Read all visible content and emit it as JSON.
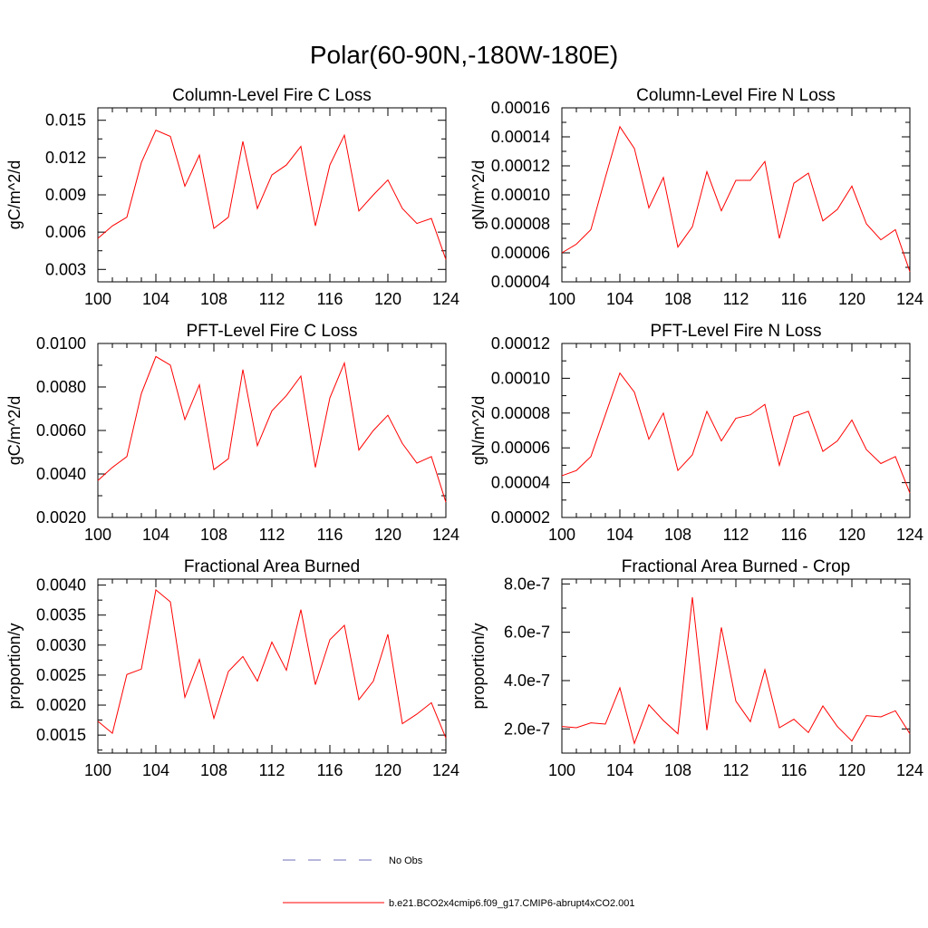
{
  "title": "Polar(60-90N,-180W-180E)",
  "chart_data": [
    {
      "type": "line",
      "title": "Column-Level Fire C Loss",
      "ylabel": "gC/m^2/d",
      "x": [
        100,
        101,
        102,
        103,
        104,
        105,
        106,
        107,
        108,
        109,
        110,
        111,
        112,
        113,
        114,
        115,
        116,
        117,
        118,
        119,
        120,
        121,
        122,
        123,
        124
      ],
      "series": [
        {
          "name": "b.e21.BCO2x4cmip6.f09_g17.CMIP6-abrupt4xCO2.001",
          "values": [
            0.0055,
            0.0065,
            0.0072,
            0.0116,
            0.0142,
            0.0137,
            0.0097,
            0.0122,
            0.0063,
            0.0072,
            0.0133,
            0.0079,
            0.0106,
            0.0114,
            0.0129,
            0.0065,
            0.0114,
            0.0138,
            0.0077,
            0.009,
            0.0102,
            0.0079,
            0.0067,
            0.0071,
            0.0038
          ]
        }
      ],
      "xlim": [
        100,
        124
      ],
      "ylim": [
        0.002,
        0.016
      ],
      "xticks": [
        "100",
        "104",
        "108",
        "112",
        "116",
        "120",
        "124"
      ],
      "yticks": [
        0.003,
        0.006,
        0.009,
        0.012,
        0.015
      ],
      "yticklabels": [
        "0.003",
        "0.006",
        "0.009",
        "0.012",
        "0.015"
      ]
    },
    {
      "type": "line",
      "title": "Column-Level Fire N Loss",
      "ylabel": "gN/m^2/d",
      "x": [
        100,
        101,
        102,
        103,
        104,
        105,
        106,
        107,
        108,
        109,
        110,
        111,
        112,
        113,
        114,
        115,
        116,
        117,
        118,
        119,
        120,
        121,
        122,
        123,
        124
      ],
      "series": [
        {
          "name": "b.e21.BCO2x4cmip6.f09_g17.CMIP6-abrupt4xCO2.001",
          "values": [
            6e-05,
            6.6e-05,
            7.6e-05,
            0.000112,
            0.000147,
            0.000132,
            9.1e-05,
            0.000112,
            6.4e-05,
            7.8e-05,
            0.000116,
            8.9e-05,
            0.00011,
            0.00011,
            0.000123,
            7e-05,
            0.000108,
            0.000115,
            8.2e-05,
            9e-05,
            0.000106,
            8e-05,
            6.9e-05,
            7.6e-05,
            4.7e-05
          ]
        }
      ],
      "xlim": [
        100,
        124
      ],
      "ylim": [
        4e-05,
        0.00016
      ],
      "xticks": [
        "100",
        "104",
        "108",
        "112",
        "116",
        "120",
        "124"
      ],
      "yticks": [
        4e-05,
        6e-05,
        8e-05,
        0.0001,
        0.00012,
        0.00014,
        0.00016
      ],
      "yticklabels": [
        "0.00004",
        "0.00006",
        "0.00008",
        "0.00010",
        "0.00012",
        "0.00014",
        "0.00016"
      ]
    },
    {
      "type": "line",
      "title": "PFT-Level Fire C Loss",
      "ylabel": "gC/m^2/d",
      "x": [
        100,
        101,
        102,
        103,
        104,
        105,
        106,
        107,
        108,
        109,
        110,
        111,
        112,
        113,
        114,
        115,
        116,
        117,
        118,
        119,
        120,
        121,
        122,
        123,
        124
      ],
      "series": [
        {
          "name": "b.e21.BCO2x4cmip6.f09_g17.CMIP6-abrupt4xCO2.001",
          "values": [
            0.0037,
            0.0043,
            0.0048,
            0.0077,
            0.0094,
            0.009,
            0.0065,
            0.0081,
            0.0042,
            0.0047,
            0.0088,
            0.0053,
            0.0069,
            0.0076,
            0.0085,
            0.0043,
            0.0075,
            0.0091,
            0.0051,
            0.006,
            0.0067,
            0.0054,
            0.0045,
            0.0048,
            0.0027
          ]
        }
      ],
      "xlim": [
        100,
        124
      ],
      "ylim": [
        0.002,
        0.01
      ],
      "xticks": [
        "100",
        "104",
        "108",
        "112",
        "116",
        "120",
        "124"
      ],
      "yticks": [
        0.002,
        0.004,
        0.006,
        0.008,
        0.01
      ],
      "yticklabels": [
        "0.0020",
        "0.0040",
        "0.0060",
        "0.0080",
        "0.0100"
      ]
    },
    {
      "type": "line",
      "title": "PFT-Level Fire N Loss",
      "ylabel": "gN/m^2/d",
      "x": [
        100,
        101,
        102,
        103,
        104,
        105,
        106,
        107,
        108,
        109,
        110,
        111,
        112,
        113,
        114,
        115,
        116,
        117,
        118,
        119,
        120,
        121,
        122,
        123,
        124
      ],
      "series": [
        {
          "name": "b.e21.BCO2x4cmip6.f09_g17.CMIP6-abrupt4xCO2.001",
          "values": [
            4.4e-05,
            4.7e-05,
            5.5e-05,
            7.9e-05,
            0.000103,
            9.2e-05,
            6.5e-05,
            8e-05,
            4.7e-05,
            5.6e-05,
            8.1e-05,
            6.4e-05,
            7.7e-05,
            7.9e-05,
            8.5e-05,
            5e-05,
            7.8e-05,
            8.1e-05,
            5.8e-05,
            6.4e-05,
            7.6e-05,
            5.9e-05,
            5.1e-05,
            5.5e-05,
            3.4e-05
          ]
        }
      ],
      "xlim": [
        100,
        124
      ],
      "ylim": [
        2e-05,
        0.00012
      ],
      "xticks": [
        "100",
        "104",
        "108",
        "112",
        "116",
        "120",
        "124"
      ],
      "yticks": [
        2e-05,
        4e-05,
        6e-05,
        8e-05,
        0.0001,
        0.00012
      ],
      "yticklabels": [
        "0.00002",
        "0.00004",
        "0.00006",
        "0.00008",
        "0.00010",
        "0.00012"
      ]
    },
    {
      "type": "line",
      "title": "Fractional Area Burned",
      "ylabel": "proportion/y",
      "x": [
        100,
        101,
        102,
        103,
        104,
        105,
        106,
        107,
        108,
        109,
        110,
        111,
        112,
        113,
        114,
        115,
        116,
        117,
        118,
        119,
        120,
        121,
        122,
        123,
        124
      ],
      "series": [
        {
          "name": "b.e21.BCO2x4cmip6.f09_g17.CMIP6-abrupt4xCO2.001",
          "values": [
            0.00173,
            0.00153,
            0.00251,
            0.0026,
            0.00392,
            0.00372,
            0.00213,
            0.00276,
            0.00178,
            0.00256,
            0.00281,
            0.0024,
            0.00305,
            0.00258,
            0.00359,
            0.00234,
            0.00309,
            0.00333,
            0.00209,
            0.0024,
            0.00318,
            0.00169,
            0.00185,
            0.00204,
            0.00145
          ]
        }
      ],
      "xlim": [
        100,
        124
      ],
      "ylim": [
        0.0012,
        0.0041
      ],
      "xticks": [
        "100",
        "104",
        "108",
        "112",
        "116",
        "120",
        "124"
      ],
      "yticks": [
        0.0015,
        0.002,
        0.0025,
        0.003,
        0.0035,
        0.004
      ],
      "yticklabels": [
        "0.0015",
        "0.0020",
        "0.0025",
        "0.0030",
        "0.0035",
        "0.0040"
      ]
    },
    {
      "type": "line",
      "title": "Fractional Area Burned - Crop",
      "ylabel": "proportion/y",
      "x": [
        100,
        101,
        102,
        103,
        104,
        105,
        106,
        107,
        108,
        109,
        110,
        111,
        112,
        113,
        114,
        115,
        116,
        117,
        118,
        119,
        120,
        121,
        122,
        123,
        124
      ],
      "series": [
        {
          "name": "b.e21.BCO2x4cmip6.f09_g17.CMIP6-abrupt4xCO2.001",
          "values": [
            2.1e-07,
            2.05e-07,
            2.25e-07,
            2.2e-07,
            3.7e-07,
            1.4e-07,
            3e-07,
            2.35e-07,
            1.8e-07,
            7.45e-07,
            1.95e-07,
            6.2e-07,
            3.15e-07,
            2.3e-07,
            4.45e-07,
            2.05e-07,
            2.4e-07,
            1.85e-07,
            2.95e-07,
            2.1e-07,
            1.5e-07,
            2.55e-07,
            2.5e-07,
            2.75e-07,
            1.8e-07
          ]
        }
      ],
      "xlim": [
        100,
        124
      ],
      "ylim": [
        1e-07,
        8.2e-07
      ],
      "xticks": [
        "100",
        "104",
        "108",
        "112",
        "116",
        "120",
        "124"
      ],
      "yticks": [
        2e-07,
        4e-07,
        6e-07,
        8e-07
      ],
      "yticklabels": [
        "2.0e-7",
        "4.0e-7",
        "6.0e-7",
        "8.0e-7"
      ]
    }
  ],
  "legend": [
    {
      "label": "No Obs",
      "color": "#6f6fb8",
      "style": "dashed"
    },
    {
      "label": "b.e21.BCO2x4cmip6.f09_g17.CMIP6-abrupt4xCO2.001",
      "color": "#ff0000",
      "style": "solid"
    }
  ]
}
